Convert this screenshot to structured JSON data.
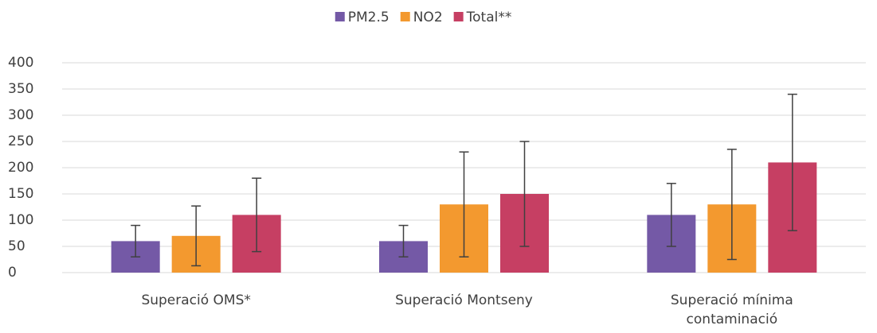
{
  "chart_data": {
    "type": "bar",
    "categories": [
      "Superació OMS*",
      "Superació Montseny",
      "Superació mínima contaminació"
    ],
    "series": [
      {
        "name": "PM2.5",
        "color": "#7459a6",
        "values": [
          60,
          60,
          110
        ],
        "errors": [
          30,
          30,
          60
        ]
      },
      {
        "name": "NO2",
        "color": "#f3992f",
        "values": [
          70,
          130,
          130
        ],
        "errors": [
          57,
          100,
          105
        ]
      },
      {
        "name": "Total**",
        "color": "#c63f63",
        "values": [
          110,
          150,
          210
        ],
        "errors": [
          70,
          100,
          130
        ]
      }
    ],
    "ylim": [
      0,
      400
    ],
    "yticks": [
      0,
      50,
      100,
      150,
      200,
      250,
      300,
      350,
      400
    ],
    "grid": true,
    "legend": "top"
  }
}
